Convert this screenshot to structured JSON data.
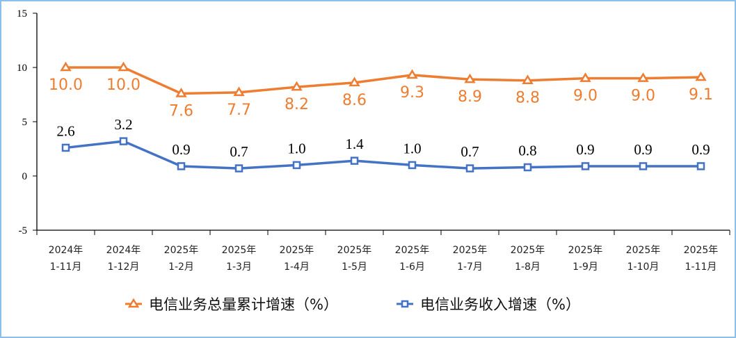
{
  "chart_data": {
    "type": "line",
    "categories": [
      [
        "2024年",
        "1-11月"
      ],
      [
        "2024年",
        "1-12月"
      ],
      [
        "2025年",
        "1-2月"
      ],
      [
        "2025年",
        "1-3月"
      ],
      [
        "2025年",
        "1-4月"
      ],
      [
        "2025年",
        "1-5月"
      ],
      [
        "2025年",
        "1-6月"
      ],
      [
        "2025年",
        "1-7月"
      ],
      [
        "2025年",
        "1-8月"
      ],
      [
        "2025年",
        "1-9月"
      ],
      [
        "2025年",
        "1-10月"
      ],
      [
        "2025年",
        "1-11月"
      ]
    ],
    "series": [
      {
        "name": "电信业务总量累计增速（%）",
        "color": "#ED7D31",
        "marker": "triangle",
        "label_position": "below",
        "values": [
          10.0,
          10.0,
          7.6,
          7.7,
          8.2,
          8.6,
          9.3,
          8.9,
          8.8,
          9.0,
          9.0,
          9.1
        ]
      },
      {
        "name": "电信业务收入增速（%）",
        "color": "#4472C4",
        "marker": "square",
        "label_position": "above",
        "values": [
          2.6,
          3.2,
          0.9,
          0.7,
          1.0,
          1.4,
          1.0,
          0.7,
          0.8,
          0.9,
          0.9,
          0.9
        ]
      }
    ],
    "ylim": [
      -5,
      15
    ],
    "yticks": [
      15,
      10,
      5,
      0,
      -5
    ],
    "grid": false,
    "legend": "bottom"
  }
}
